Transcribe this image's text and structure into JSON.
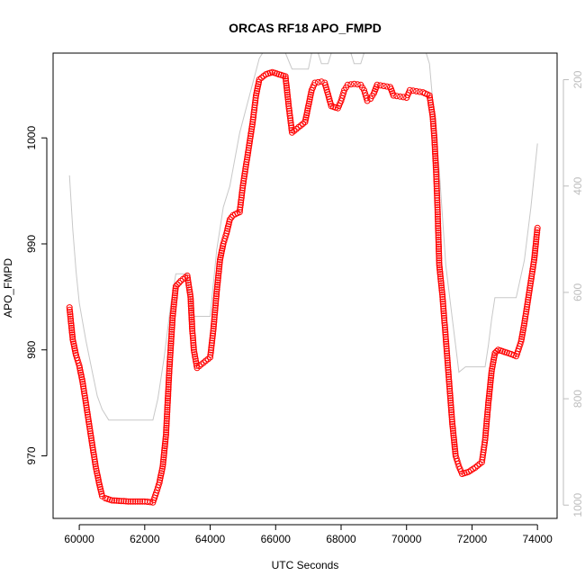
{
  "chart_data": {
    "type": "scatter",
    "title": "ORCAS RF18 APO_FMPD",
    "xlabel": "UTC Seconds",
    "ylabel": "APO_FMPD",
    "xlim": [
      59200,
      74600
    ],
    "ylim": [
      964.1,
      1008
    ],
    "x_ticks": [
      60000,
      62000,
      64000,
      66000,
      68000,
      70000,
      72000,
      74000
    ],
    "y_ticks": [
      970,
      980,
      990,
      1000
    ],
    "y2_ticks": [
      200,
      400,
      600,
      800,
      1000
    ],
    "y2_reversed": true,
    "y2_lim": [
      150,
      1025
    ],
    "grid": false,
    "legend": "none",
    "point_color": "#ff0000",
    "line_color": "#c8c8c8",
    "series": [
      {
        "marker": "open-circle",
        "axis": "left",
        "points": [
          [
            59700,
            984.0
          ],
          [
            59800,
            981.0
          ],
          [
            59900,
            979.5
          ],
          [
            60000,
            978.5
          ],
          [
            60100,
            977.0
          ],
          [
            60200,
            975.0
          ],
          [
            60300,
            973.0
          ],
          [
            60400,
            971.0
          ],
          [
            60500,
            969.0
          ],
          [
            60600,
            967.5
          ],
          [
            60700,
            966.2
          ],
          [
            60800,
            966.0
          ],
          [
            61000,
            965.8
          ],
          [
            61500,
            965.7
          ],
          [
            62000,
            965.7
          ],
          [
            62250,
            965.6
          ],
          [
            62350,
            966.5
          ],
          [
            62450,
            967.5
          ],
          [
            62550,
            969.0
          ],
          [
            62650,
            972.0
          ],
          [
            62750,
            978.0
          ],
          [
            62850,
            983.0
          ],
          [
            62950,
            986.0
          ],
          [
            63100,
            986.5
          ],
          [
            63300,
            987.0
          ],
          [
            63400,
            985.0
          ],
          [
            63450,
            982.0
          ],
          [
            63500,
            980.0
          ],
          [
            63600,
            978.3
          ],
          [
            63800,
            978.8
          ],
          [
            64000,
            979.3
          ],
          [
            64100,
            982.0
          ],
          [
            64200,
            985.5
          ],
          [
            64300,
            988.5
          ],
          [
            64400,
            990.0
          ],
          [
            64500,
            991.0
          ],
          [
            64600,
            992.3
          ],
          [
            64700,
            992.7
          ],
          [
            64900,
            993.0
          ],
          [
            65000,
            995.5
          ],
          [
            65100,
            997.5
          ],
          [
            65200,
            999.5
          ],
          [
            65300,
            1001.5
          ],
          [
            65400,
            1004.0
          ],
          [
            65500,
            1005.5
          ],
          [
            65700,
            1006.0
          ],
          [
            65900,
            1006.2
          ],
          [
            66100,
            1006.0
          ],
          [
            66300,
            1005.8
          ],
          [
            66400,
            1003.0
          ],
          [
            66500,
            1000.5
          ],
          [
            66700,
            1001.0
          ],
          [
            66900,
            1001.5
          ],
          [
            67000,
            1003.0
          ],
          [
            67100,
            1004.5
          ],
          [
            67200,
            1005.2
          ],
          [
            67400,
            1005.3
          ],
          [
            67500,
            1005.2
          ],
          [
            67700,
            1003.0
          ],
          [
            67900,
            1002.8
          ],
          [
            68000,
            1003.5
          ],
          [
            68100,
            1004.5
          ],
          [
            68200,
            1005.0
          ],
          [
            68400,
            1005.1
          ],
          [
            68600,
            1005.0
          ],
          [
            68700,
            1004.5
          ],
          [
            68800,
            1003.5
          ],
          [
            68900,
            1003.7
          ],
          [
            69000,
            1004.2
          ],
          [
            69100,
            1005.0
          ],
          [
            69300,
            1004.9
          ],
          [
            69500,
            1004.8
          ],
          [
            69600,
            1004.0
          ],
          [
            69800,
            1003.9
          ],
          [
            70000,
            1003.8
          ],
          [
            70100,
            1004.5
          ],
          [
            70300,
            1004.4
          ],
          [
            70500,
            1004.3
          ],
          [
            70700,
            1004.0
          ],
          [
            70800,
            1002.0
          ],
          [
            70850,
            1000.0
          ],
          [
            70900,
            997.0
          ],
          [
            70950,
            993.0
          ],
          [
            71000,
            988.0
          ],
          [
            71100,
            985.0
          ],
          [
            71200,
            981.0
          ],
          [
            71300,
            977.0
          ],
          [
            71400,
            973.0
          ],
          [
            71500,
            970.0
          ],
          [
            71600,
            969.0
          ],
          [
            71700,
            968.3
          ],
          [
            71900,
            968.5
          ],
          [
            72100,
            968.9
          ],
          [
            72300,
            969.4
          ],
          [
            72400,
            971.5
          ],
          [
            72500,
            975.0
          ],
          [
            72600,
            978.0
          ],
          [
            72700,
            979.7
          ],
          [
            72800,
            980.0
          ],
          [
            73000,
            979.8
          ],
          [
            73200,
            979.6
          ],
          [
            73350,
            979.4
          ],
          [
            73500,
            980.8
          ],
          [
            73600,
            982.5
          ],
          [
            73700,
            984.5
          ],
          [
            73800,
            986.5
          ],
          [
            73900,
            988.5
          ],
          [
            74000,
            991.5
          ]
        ]
      },
      {
        "marker": "line",
        "axis": "right",
        "points": [
          [
            59700,
            380
          ],
          [
            59800,
            480
          ],
          [
            59900,
            560
          ],
          [
            60000,
            620
          ],
          [
            60200,
            690
          ],
          [
            60400,
            750
          ],
          [
            60550,
            795
          ],
          [
            60700,
            820
          ],
          [
            60900,
            840
          ],
          [
            61200,
            840
          ],
          [
            61800,
            840
          ],
          [
            62250,
            840
          ],
          [
            62400,
            800
          ],
          [
            62600,
            720
          ],
          [
            62800,
            620
          ],
          [
            62950,
            565
          ],
          [
            63300,
            565
          ],
          [
            63350,
            600
          ],
          [
            63500,
            645
          ],
          [
            64000,
            645
          ],
          [
            64200,
            520
          ],
          [
            64400,
            440
          ],
          [
            64600,
            400
          ],
          [
            64900,
            300
          ],
          [
            65200,
            230
          ],
          [
            65500,
            160
          ],
          [
            65600,
            140
          ],
          [
            66000,
            140
          ],
          [
            66300,
            150
          ],
          [
            66500,
            180
          ],
          [
            67000,
            180
          ],
          [
            67100,
            140
          ],
          [
            67300,
            140
          ],
          [
            67400,
            170
          ],
          [
            67600,
            170
          ],
          [
            67700,
            140
          ],
          [
            68100,
            140
          ],
          [
            68300,
            140
          ],
          [
            68400,
            170
          ],
          [
            68600,
            170
          ],
          [
            68700,
            140
          ],
          [
            70600,
            140
          ],
          [
            70700,
            170
          ],
          [
            70800,
            240
          ],
          [
            71000,
            370
          ],
          [
            71200,
            550
          ],
          [
            71400,
            650
          ],
          [
            71600,
            750
          ],
          [
            71800,
            740
          ],
          [
            72400,
            740
          ],
          [
            72500,
            700
          ],
          [
            72600,
            650
          ],
          [
            72700,
            610
          ],
          [
            73000,
            610
          ],
          [
            73350,
            610
          ],
          [
            73600,
            540
          ],
          [
            73800,
            440
          ],
          [
            74000,
            320
          ]
        ]
      }
    ]
  }
}
